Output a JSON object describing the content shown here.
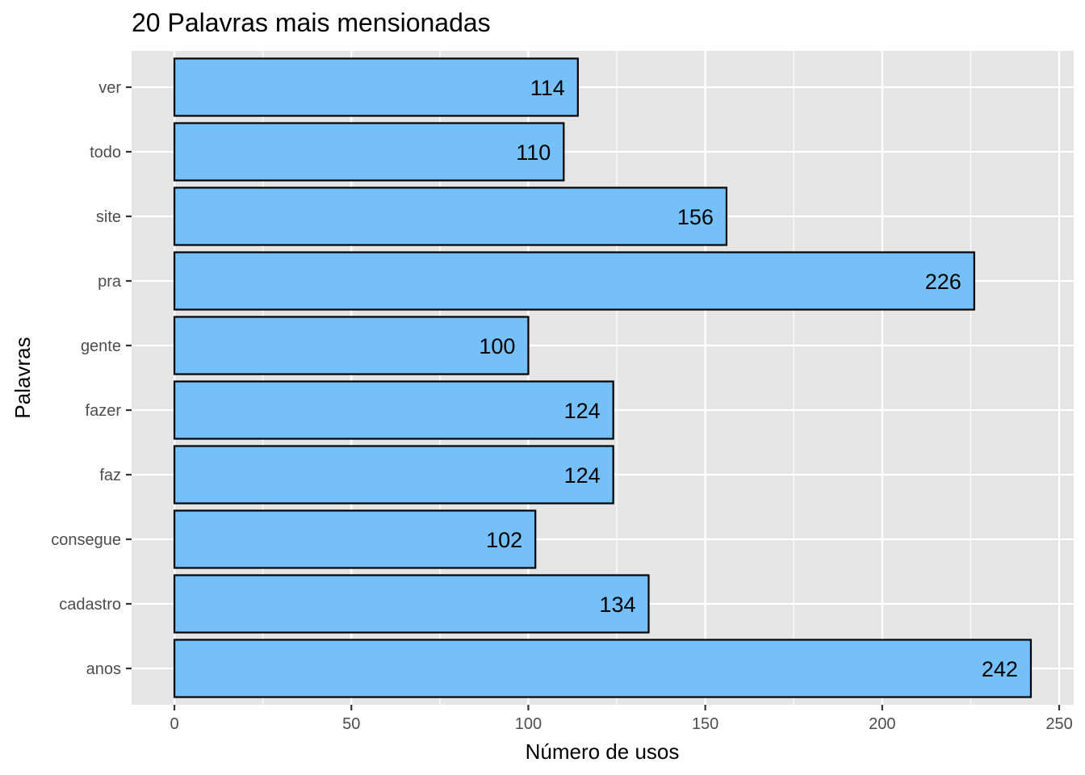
{
  "chart_data": {
    "type": "bar",
    "orientation": "horizontal",
    "title": "20 Palavras mais mensionadas",
    "xlabel": "Número de usos",
    "ylabel": "Palavras",
    "categories": [
      "anos",
      "cadastro",
      "consegue",
      "faz",
      "fazer",
      "gente",
      "pra",
      "site",
      "todo",
      "ver"
    ],
    "values": [
      242,
      134,
      102,
      124,
      124,
      100,
      226,
      156,
      110,
      114
    ],
    "data_labels": [
      "242",
      "134",
      "102",
      "124",
      "124",
      "100",
      "226",
      "156",
      "110",
      "114"
    ],
    "xlim": [
      -12.1,
      254.1
    ],
    "xticks": [
      0,
      50,
      100,
      150,
      200,
      250
    ],
    "xtick_labels": [
      "0",
      "50",
      "100",
      "150",
      "200",
      "250"
    ],
    "grid": true,
    "legend": "none"
  },
  "colors": {
    "bar_fill": "#75c0f9",
    "bar_outline": "#000000",
    "panel_background": "#e5e5e5",
    "grid_line": "#ffffff",
    "tick_text": "#4d4d4d"
  }
}
